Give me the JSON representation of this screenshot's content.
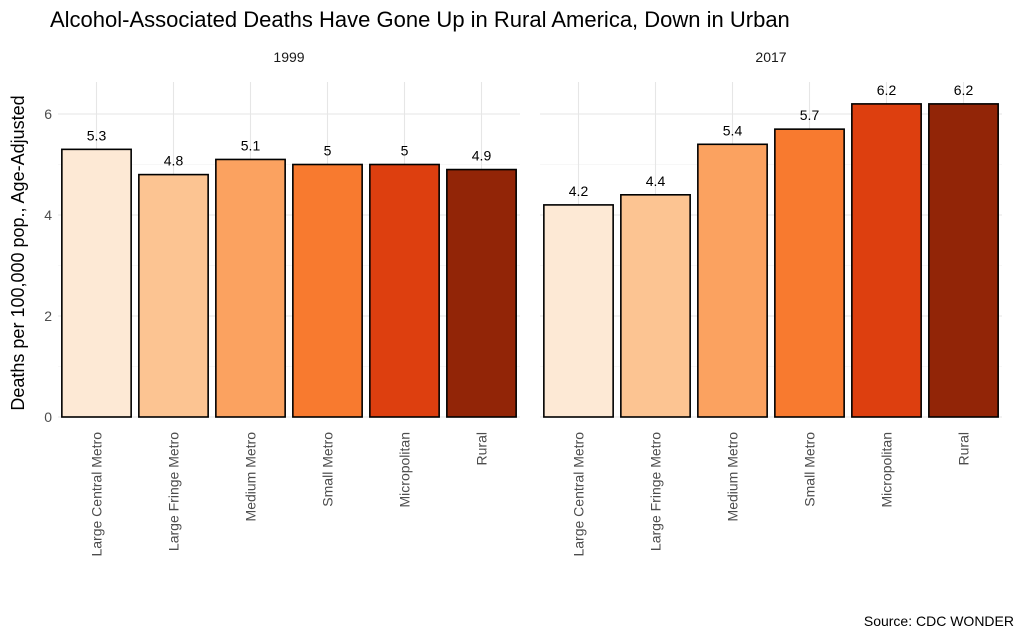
{
  "chart_data": {
    "type": "bar",
    "title": "Alcohol-Associated Deaths Have Gone Up in Rural America, Down in Urban",
    "ylabel": "Deaths per 100,000 pop., Age-Adjusted",
    "xlabel": "",
    "caption": "Source: CDC WONDER",
    "ylim": [
      0,
      6.5
    ],
    "yticks": [
      0,
      2,
      4,
      6
    ],
    "categories": [
      "Large Central Metro",
      "Large Fringe Metro",
      "Medium Metro",
      "Small Metro",
      "Micropolitan",
      "Rural"
    ],
    "colors": [
      "#fde9d5",
      "#fcc492",
      "#fba260",
      "#f87a2f",
      "#dd3f0f",
      "#922507"
    ],
    "panels": [
      {
        "name": "1999",
        "values": [
          5.3,
          4.8,
          5.1,
          5,
          5,
          4.9
        ],
        "labels": [
          "5.3",
          "4.8",
          "5.1",
          "5",
          "5",
          "4.9"
        ]
      },
      {
        "name": "2017",
        "values": [
          4.2,
          4.4,
          5.4,
          5.7,
          6.2,
          6.2
        ],
        "labels": [
          "4.2",
          "4.4",
          "5.4",
          "5.7",
          "6.2",
          "6.2"
        ]
      }
    ],
    "grid": true,
    "legend": "none"
  }
}
